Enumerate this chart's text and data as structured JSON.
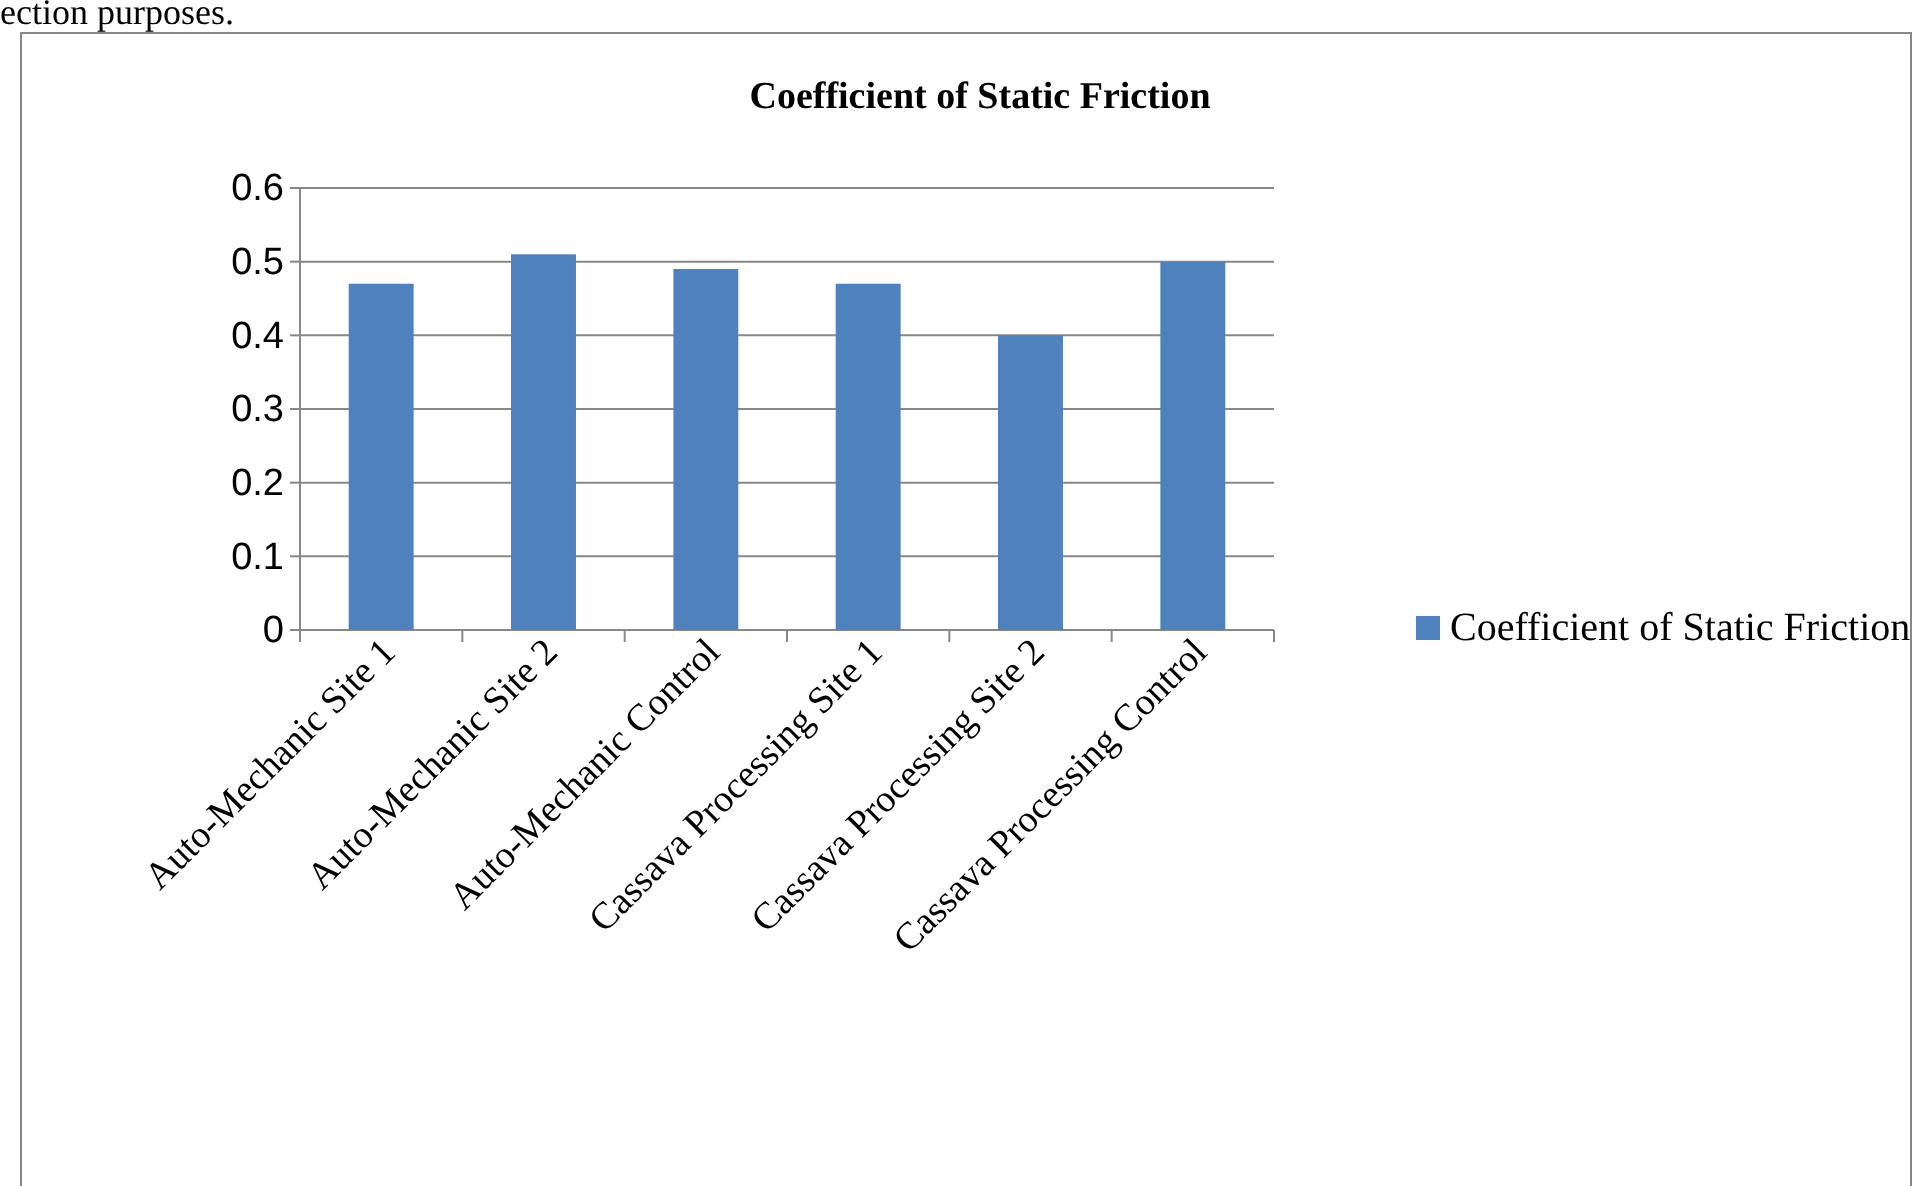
{
  "chart_data": {
    "type": "bar",
    "title": "Coefficient of Static Friction",
    "categories": [
      "Auto-Mechanic Site 1",
      "Auto-Mechanic Site 2",
      "Auto-Mechanic Control",
      "Cassava Processing Site 1",
      "Cassava Processing Site 2",
      "Cassava Processing Control"
    ],
    "series": [
      {
        "name": "Coefficient of Static Friction",
        "color": "#4f81bd",
        "values": [
          0.47,
          0.51,
          0.49,
          0.47,
          0.4,
          0.5
        ]
      }
    ],
    "ylim": [
      0,
      0.6
    ],
    "yticks": [
      {
        "value": 0,
        "label": "0"
      },
      0.1,
      0.2,
      0.3,
      0.4,
      0.5,
      0.6
    ],
    "grid": "y",
    "legend": "right",
    "annotations": [
      "ection purposes."
    ]
  }
}
